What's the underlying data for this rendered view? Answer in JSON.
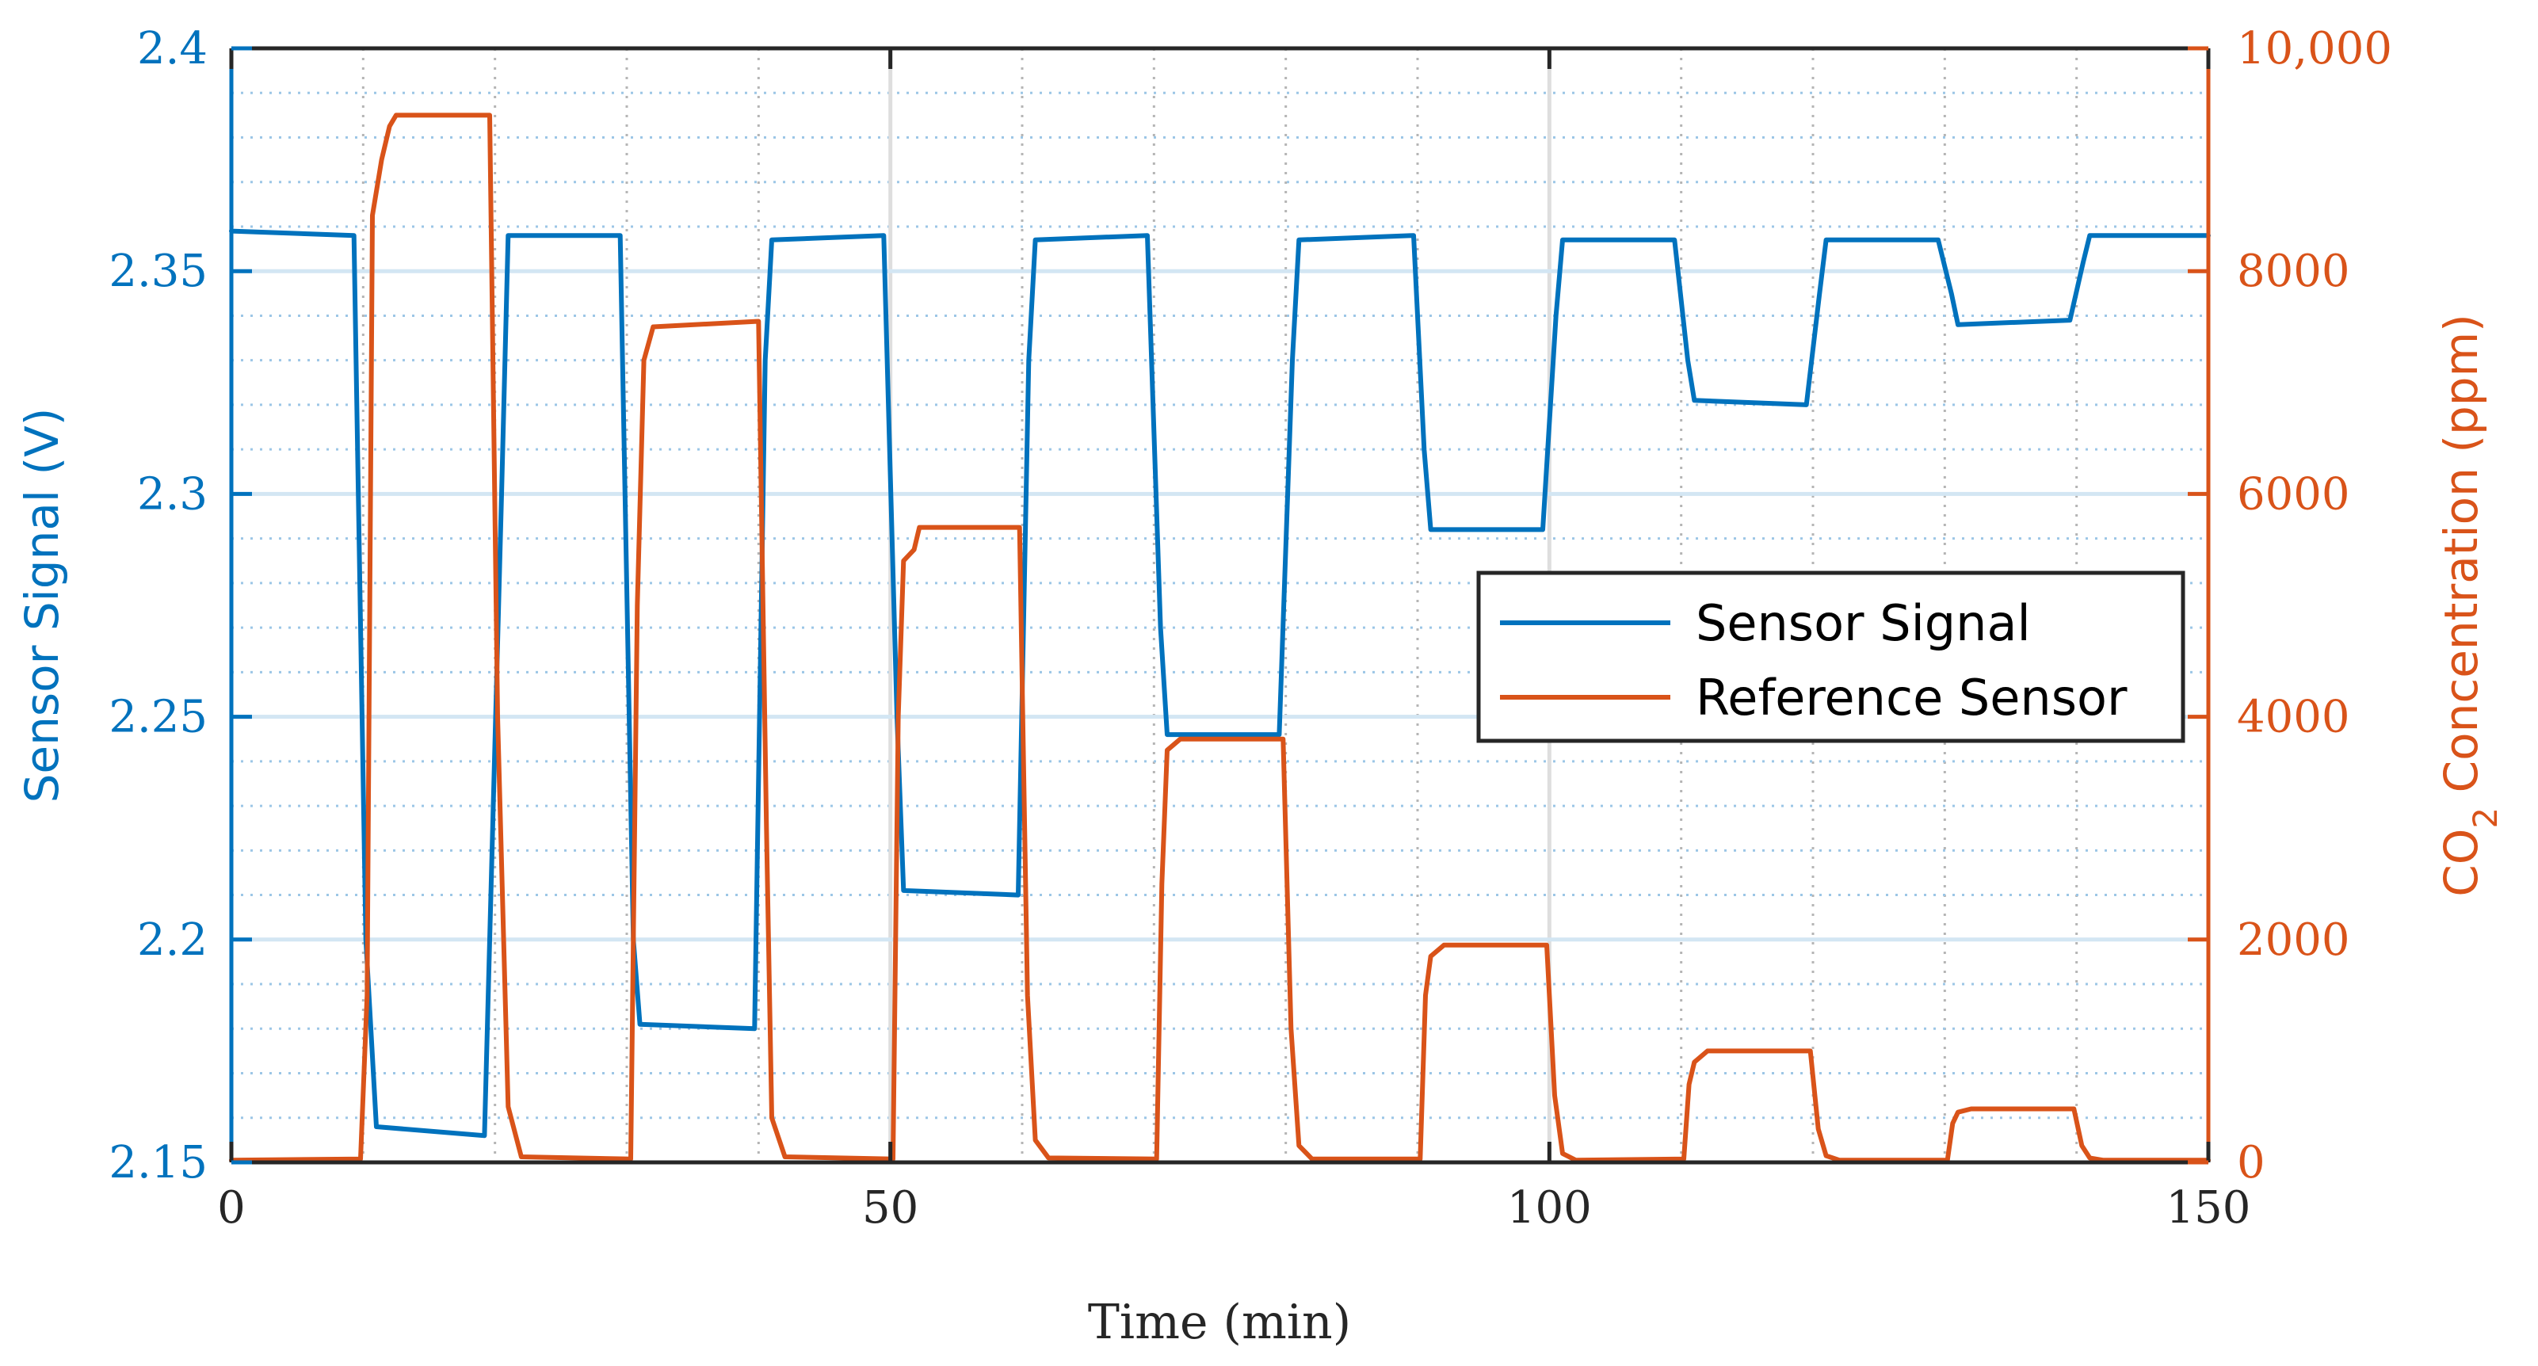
{
  "chart_data": {
    "type": "line",
    "title": "",
    "xlabel": "Time (min)",
    "ylabel": "Sensor Signal (V)",
    "y2label_prefix": "CO",
    "y2label_sub": "2",
    "y2label_suffix": " Concentration (ppm)",
    "xlim": [
      0,
      150
    ],
    "ylim": [
      2.15,
      2.4
    ],
    "y2lim": [
      0,
      10000
    ],
    "x_ticks": [
      0,
      50,
      100,
      150
    ],
    "x_tick_labels": [
      "0",
      "50",
      "100",
      "150"
    ],
    "y_ticks": [
      2.15,
      2.2,
      2.25,
      2.3,
      2.35,
      2.4
    ],
    "y_tick_labels": [
      "2.15",
      "2.2",
      "2.25",
      "2.3",
      "2.35",
      "2.4"
    ],
    "y2_ticks": [
      0,
      2000,
      4000,
      6000,
      8000,
      10000
    ],
    "y2_tick_labels": [
      "0",
      "2000",
      "4000",
      "6000",
      "8000",
      "10,000"
    ],
    "grid": "on",
    "legend_position": "center-right",
    "series": [
      {
        "name": "Sensor Signal",
        "axis": "left",
        "color": "#0072BD",
        "x": [
          0,
          9.3,
          10.2,
          11,
          19.2,
          20.5,
          21,
          29.5,
          30.5,
          31,
          39.7,
          40.5,
          41,
          49.5,
          50.5,
          51,
          59.7,
          60.5,
          61,
          69.5,
          70.5,
          71,
          79.5,
          80.5,
          81,
          89.7,
          90.5,
          91,
          99.5,
          100.5,
          101,
          109.5,
          110.5,
          111,
          119.5,
          120.5,
          121,
          129.5,
          130.5,
          131,
          139.5,
          140.5,
          141,
          150
        ],
        "y": [
          2.359,
          2.358,
          2.2,
          2.158,
          2.156,
          2.3,
          2.358,
          2.358,
          2.2,
          2.181,
          2.18,
          2.33,
          2.357,
          2.358,
          2.25,
          2.211,
          2.21,
          2.33,
          2.357,
          2.358,
          2.27,
          2.246,
          2.246,
          2.33,
          2.357,
          2.358,
          2.31,
          2.292,
          2.292,
          2.34,
          2.357,
          2.357,
          2.33,
          2.321,
          2.32,
          2.345,
          2.357,
          2.357,
          2.345,
          2.338,
          2.339,
          2.352,
          2.358,
          2.358
        ]
      },
      {
        "name": "Reference Sensor",
        "axis": "right",
        "color": "#D95319",
        "x": [
          0,
          9.8,
          10.3,
          10.7,
          11.4,
          12,
          12.5,
          19.6,
          20.2,
          21,
          22,
          30.3,
          30.8,
          31.3,
          32,
          40,
          40.6,
          41,
          42,
          50.2,
          50.6,
          51,
          51.8,
          52.2,
          53,
          59.8,
          60.4,
          61,
          62,
          70.2,
          70.6,
          71,
          72,
          79.8,
          80.4,
          81,
          82,
          90.2,
          90.6,
          91,
          92,
          99.8,
          100.4,
          101,
          102,
          110.2,
          110.6,
          111,
          112,
          119.8,
          120.4,
          121,
          122,
          130.2,
          130.6,
          131,
          132,
          139.8,
          140.4,
          141,
          142,
          150
        ],
        "y": [
          20,
          30,
          1500,
          8500,
          9000,
          9300,
          9400,
          9400,
          4000,
          500,
          50,
          30,
          5000,
          7200,
          7500,
          7550,
          3000,
          400,
          50,
          30,
          4000,
          5400,
          5500,
          5700,
          5700,
          5700,
          1500,
          200,
          40,
          30,
          2500,
          3700,
          3800,
          3800,
          1200,
          150,
          30,
          30,
          1500,
          1850,
          1950,
          1950,
          600,
          80,
          20,
          30,
          700,
          900,
          1000,
          1000,
          300,
          60,
          20,
          20,
          350,
          450,
          480,
          480,
          150,
          40,
          20,
          20
        ]
      }
    ]
  }
}
